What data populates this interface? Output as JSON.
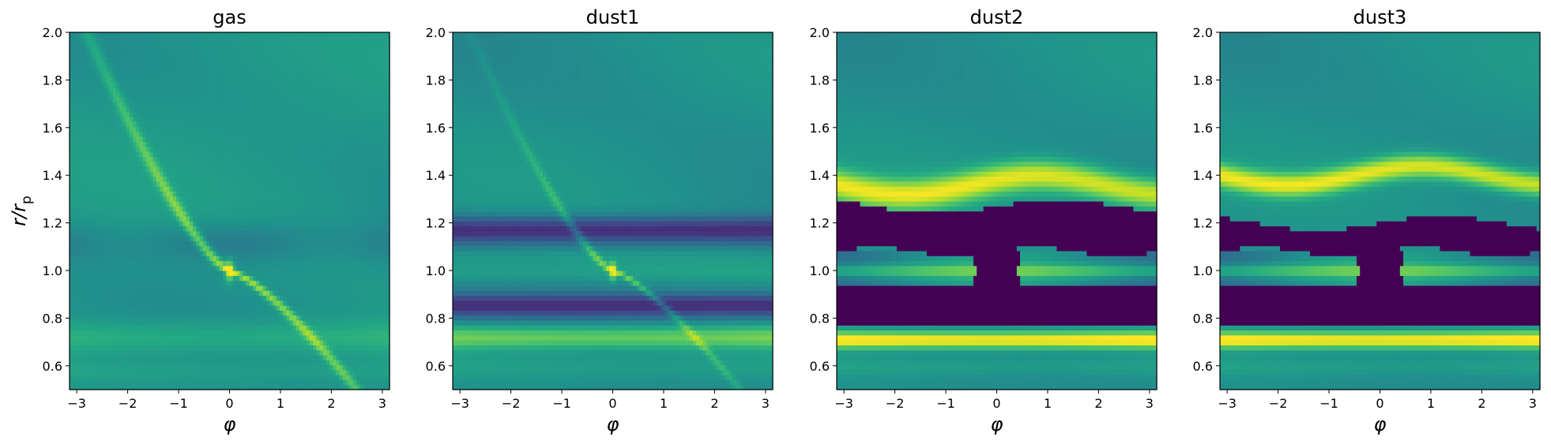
{
  "chart_data": [
    {
      "type": "heatmap",
      "title": "gas",
      "xlabel": "φ",
      "ylabel": "r/r_p",
      "xlim": [
        -3.1416,
        3.1416
      ],
      "ylim": [
        0.5,
        2.0
      ],
      "xticks": [
        "−3",
        "−2",
        "−1",
        "0",
        "1",
        "2",
        "3"
      ],
      "yticks": [
        "0.6",
        "0.8",
        "1.0",
        "1.2",
        "1.4",
        "1.6",
        "1.8",
        "2.0"
      ],
      "colormap": "viridis",
      "grid": false,
      "features": {
        "background": 0.48,
        "spiral_arm": {
          "peak": 0.85,
          "pitch_inner": 0.2,
          "pitch_outer": 0.2
        },
        "planet_peak": {
          "x": 0,
          "y": 1.0,
          "value": 0.95
        },
        "gap_depth": 0.12,
        "inner_ring": {
          "r": 0.72,
          "value": 0.7
        }
      }
    },
    {
      "type": "heatmap",
      "title": "dust1",
      "xlabel": "φ",
      "ylabel": "",
      "xlim": [
        -3.1416,
        3.1416
      ],
      "ylim": [
        0.5,
        2.0
      ],
      "xticks": [
        "−3",
        "−2",
        "−1",
        "0",
        "1",
        "2",
        "3"
      ],
      "yticks": [
        "0.6",
        "0.8",
        "1.0",
        "1.2",
        "1.4",
        "1.6",
        "1.8",
        "2.0"
      ],
      "colormap": "viridis",
      "grid": false,
      "features": {
        "background": 0.45,
        "gap_bands": [
          [
            0.82,
            0.9
          ],
          [
            1.12,
            1.22
          ]
        ],
        "gap_value": 0.08,
        "corotation_band": {
          "r": 1.0,
          "value": 0.55
        },
        "spiral_arm_value": 0.7,
        "planet_peak": {
          "x": 0,
          "y": 1.0,
          "value": 0.9
        },
        "inner_ring": {
          "r": 0.72,
          "value": 0.78
        }
      }
    },
    {
      "type": "heatmap",
      "title": "dust2",
      "xlabel": "φ",
      "ylabel": "",
      "xlim": [
        -3.1416,
        3.1416
      ],
      "ylim": [
        0.5,
        2.0
      ],
      "xticks": [
        "−3",
        "−2",
        "−1",
        "0",
        "1",
        "2",
        "3"
      ],
      "yticks": [
        "0.6",
        "0.8",
        "1.0",
        "1.2",
        "1.4",
        "1.6",
        "1.8",
        "2.0"
      ],
      "colormap": "viridis",
      "grid": false,
      "features": {
        "background": 0.45,
        "outer_ring": {
          "r": 1.36,
          "value": 0.95
        },
        "inner_ring": {
          "r": 0.71,
          "value": 0.97
        },
        "gap_bands": [
          [
            0.78,
            0.93
          ],
          [
            1.08,
            1.27
          ]
        ],
        "gap_value": 0.0,
        "horseshoe": {
          "r": 1.0,
          "value": 0.75,
          "empty_phi": [
            -0.4,
            0.4
          ]
        }
      }
    },
    {
      "type": "heatmap",
      "title": "dust3",
      "xlabel": "φ",
      "ylabel": "",
      "xlim": [
        -3.1416,
        3.1416
      ],
      "ylim": [
        0.5,
        2.0
      ],
      "xticks": [
        "−3",
        "−2",
        "−1",
        "0",
        "1",
        "2",
        "3"
      ],
      "yticks": [
        "0.6",
        "0.8",
        "1.0",
        "1.2",
        "1.4",
        "1.6",
        "1.8",
        "2.0"
      ],
      "colormap": "viridis",
      "grid": false,
      "features": {
        "background": 0.45,
        "outer_ring": {
          "r": 1.4,
          "value": 0.92
        },
        "inner_ring": {
          "r": 0.71,
          "value": 0.97
        },
        "gap_bands": [
          [
            0.77,
            0.93
          ],
          [
            1.08,
            1.2
          ]
        ],
        "gap_value": 0.0,
        "horseshoe": {
          "r": 1.0,
          "value": 0.7,
          "empty_phi": [
            -0.4,
            0.4
          ]
        }
      }
    }
  ]
}
